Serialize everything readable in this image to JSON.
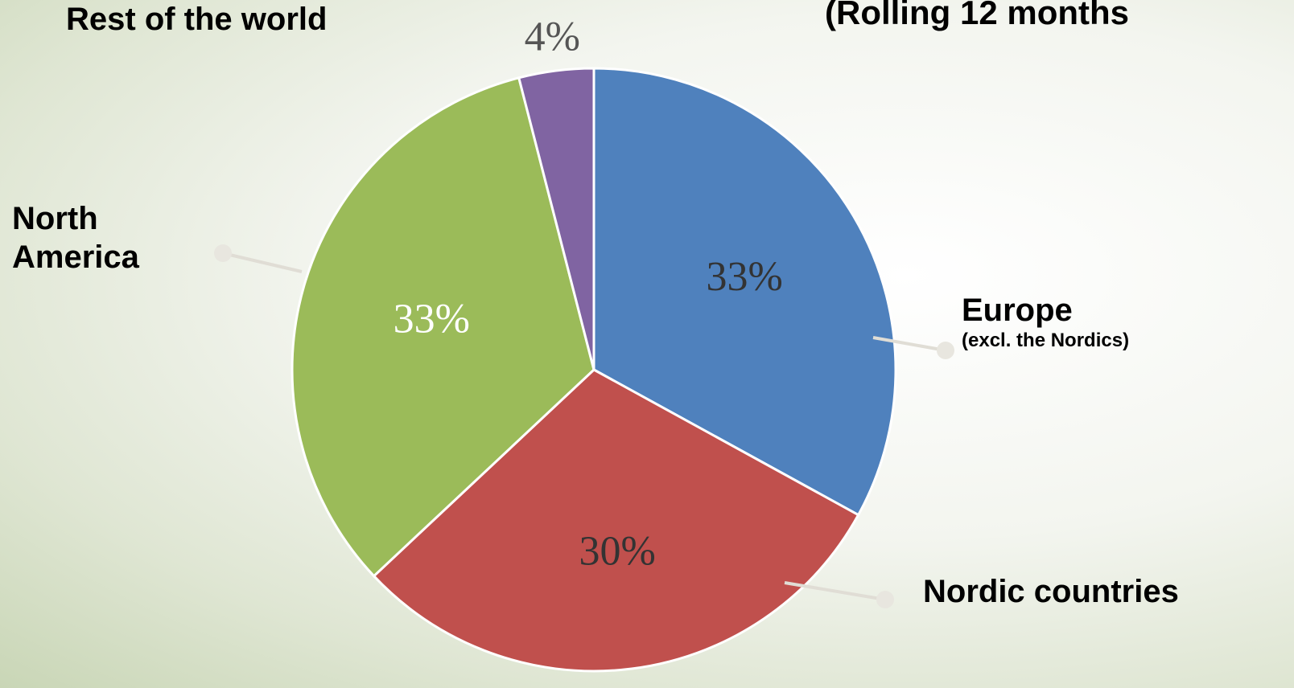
{
  "chart_data": {
    "type": "pie",
    "title": "(Rolling 12 months",
    "categories": [
      "Europe",
      "Nordic countries",
      "North America",
      "Rest of the world"
    ],
    "sublabels": [
      "(excl. the Nordics)",
      null,
      null,
      null
    ],
    "values": [
      33,
      30,
      33,
      4
    ],
    "value_labels": [
      "33%",
      "30%",
      "33%",
      "4%"
    ],
    "colors": [
      "#4f81bd",
      "#c0504d",
      "#9bbb59",
      "#8064a2"
    ]
  }
}
